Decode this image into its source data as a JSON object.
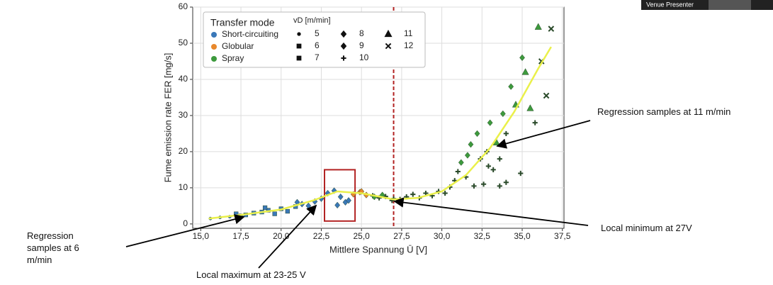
{
  "chart_data": {
    "type": "scatter",
    "x_label": "Mittlere Spannung Ū [V]",
    "y_label": "Fume emission rate  FER [mg/s]",
    "xlim": [
      14.5,
      37.6
    ],
    "ylim": [
      -1.2,
      60
    ],
    "xticks": [
      {
        "value": 15,
        "label": "15,0"
      },
      {
        "value": 17.5,
        "label": "17,5"
      },
      {
        "value": 20,
        "label": "20,0"
      },
      {
        "value": 22.5,
        "label": "22,5"
      },
      {
        "value": 25,
        "label": "25,0"
      },
      {
        "value": 27.5,
        "label": "27,5"
      },
      {
        "value": 30,
        "label": "30,0"
      },
      {
        "value": 32.5,
        "label": "32,5"
      },
      {
        "value": 35,
        "label": "35,0"
      },
      {
        "value": 37.5,
        "label": "37,5"
      }
    ],
    "yticks": [
      0,
      10,
      20,
      30,
      40,
      50,
      60
    ],
    "grid": true,
    "legend_title": "Transfer mode",
    "vd_title": "vD [m/min]",
    "vd_values": [
      5,
      6,
      7,
      8,
      9,
      10,
      11,
      12
    ],
    "vd_markers": [
      "dot",
      "square",
      "square",
      "diamond",
      "diamond",
      "plus",
      "triangle",
      "cross"
    ],
    "series": [
      {
        "name": "Short-circuiting",
        "color": "#3a78b8",
        "x": [
          15.6,
          16.2,
          16.8,
          17.2,
          17.5,
          17.8,
          18.3,
          18.8,
          19.2,
          19.6,
          20.0,
          20.4,
          20.9,
          21.3,
          21.7,
          22.1,
          22.5,
          22.9,
          23.3,
          23.7,
          24.0,
          23.5,
          24.2,
          21.0,
          19.0
        ],
        "values": [
          1.5,
          1.8,
          2.0,
          2.8,
          2.2,
          2.5,
          3.0,
          3.3,
          3.8,
          2.8,
          4.2,
          3.5,
          4.8,
          5.5,
          5.0,
          6.2,
          7.0,
          8.5,
          9.2,
          7.5,
          6.0,
          5.2,
          6.5,
          6.0,
          4.5
        ],
        "vd": [
          5,
          5,
          5,
          6,
          6,
          6,
          6,
          6,
          7,
          7,
          7,
          7,
          7,
          8,
          8,
          8,
          8,
          9,
          9,
          9,
          9,
          8,
          9,
          8,
          7
        ]
      },
      {
        "name": "Globular",
        "color": "#e8882c",
        "x": [
          24.5,
          24.9,
          25.3,
          25.7,
          26.1,
          26.5,
          26.9,
          25.0
        ],
        "values": [
          8.2,
          8.8,
          8.0,
          7.8,
          7.2,
          7.6,
          6.5,
          9.0
        ],
        "vd": [
          9,
          9,
          9,
          10,
          10,
          10,
          10,
          9
        ]
      },
      {
        "name": "Spray",
        "color": "#3d9a3d",
        "x": [
          25.8,
          26.3,
          27.0,
          27.4,
          27.8,
          28.2,
          28.6,
          29.0,
          29.4,
          29.8,
          30.2,
          30.5,
          30.8,
          31.0,
          31.2,
          31.5,
          31.6,
          31.8,
          32.0,
          32.2,
          32.4,
          32.6,
          32.8,
          33.0,
          33.2,
          33.4,
          33.6,
          33.8,
          34.0,
          34.3,
          34.6,
          34.9,
          35.0,
          35.2,
          35.5,
          35.8,
          36.0,
          36.2,
          36.5,
          36.8,
          34.0,
          32.9,
          33.6
        ],
        "values": [
          7.5,
          8.0,
          7.0,
          6.8,
          7.5,
          8.2,
          7.2,
          8.5,
          7.8,
          9.0,
          8.5,
          10.2,
          12.0,
          14.5,
          17.0,
          13.0,
          19.0,
          22.0,
          10.5,
          25.0,
          18.0,
          11.0,
          20.0,
          28.0,
          15.0,
          22.5,
          18.0,
          30.5,
          25.0,
          38.0,
          33.0,
          14.0,
          46.0,
          42.0,
          32.0,
          28.0,
          54.5,
          45.0,
          35.5,
          54.0,
          11.5,
          16.0,
          10.5
        ],
        "vd": [
          9,
          9,
          10,
          10,
          10,
          10,
          10,
          10,
          10,
          10,
          10,
          10,
          10,
          10,
          9,
          10,
          9,
          9,
          10,
          9,
          10,
          10,
          10,
          9,
          10,
          11,
          10,
          9,
          10,
          9,
          11,
          10,
          9,
          11,
          11,
          10,
          11,
          12,
          12,
          12,
          10,
          10,
          10
        ]
      }
    ],
    "regression": {
      "color": "#eaf04a",
      "x": [
        15.5,
        17.5,
        20,
        22,
        23.5,
        25,
        27,
        28.5,
        30,
        31.5,
        33,
        34.5,
        36,
        36.8
      ],
      "values": [
        1.5,
        2.5,
        4,
        6.5,
        9,
        8.5,
        6.8,
        7.2,
        9,
        13.5,
        21,
        31,
        43,
        49
      ]
    },
    "vline": {
      "x": 27.0,
      "color": "#b22222"
    },
    "highlight_box": {
      "x": [
        22.7,
        24.6
      ],
      "y": [
        0.8,
        15
      ],
      "color": "#b22222"
    },
    "annotations": [
      "Regression samples at 11 m/min",
      "Local minimum at  27V",
      "Regression samples at  6 m/min",
      "Local maximum at 23-25 V"
    ]
  },
  "overlay": {
    "label": "Venue Presenter"
  }
}
